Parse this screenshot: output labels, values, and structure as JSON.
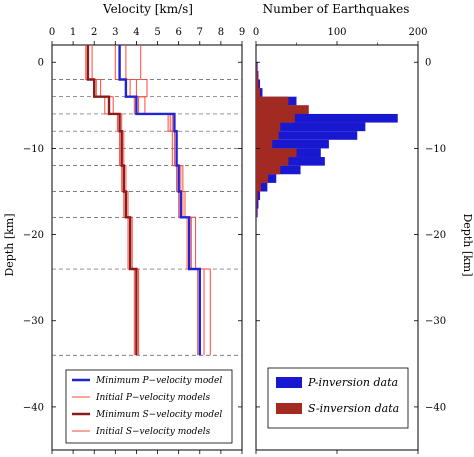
{
  "chart_data": [
    {
      "type": "line",
      "title": "Velocity [km/s]",
      "ylabel": "Depth [km]",
      "xlim": [
        0,
        9
      ],
      "ylim": [
        -45,
        2
      ],
      "x_ticks": [
        "0",
        "1",
        "2",
        "3",
        "4",
        "5",
        "6",
        "7",
        "8",
        "9"
      ],
      "y_ticks": [
        "0",
        "−10",
        "−20",
        "−30",
        "−40"
      ],
      "y_tick_values": [
        0,
        -10,
        -20,
        -30,
        -40
      ],
      "layer_boundaries": [
        -2,
        -4,
        -6,
        -8,
        -10,
        -12,
        -15,
        -18,
        -24,
        -34
      ],
      "series": [
        {
          "name": "Minimum P−velocity model",
          "color": "#1f25d6",
          "steps": [
            [
              3.2,
              2
            ],
            [
              3.2,
              -2
            ],
            [
              3.5,
              -2
            ],
            [
              3.5,
              -4
            ],
            [
              4.0,
              -4
            ],
            [
              4.0,
              -6
            ],
            [
              5.8,
              -6
            ],
            [
              5.8,
              -8
            ],
            [
              5.9,
              -8
            ],
            [
              5.9,
              -12
            ],
            [
              6.0,
              -12
            ],
            [
              6.0,
              -15
            ],
            [
              6.1,
              -15
            ],
            [
              6.1,
              -18
            ],
            [
              6.5,
              -18
            ],
            [
              6.5,
              -24
            ],
            [
              7.0,
              -24
            ],
            [
              7.0,
              -34
            ]
          ]
        },
        {
          "name": "Initial P−velocity models",
          "color": "#ff4a3a",
          "steps_sets": [
            [
              [
                3.5,
                2
              ],
              [
                3.5,
                -2
              ],
              [
                4.0,
                -2
              ],
              [
                4.0,
                -4
              ],
              [
                4.4,
                -4
              ],
              [
                4.4,
                -6
              ],
              [
                5.6,
                -6
              ],
              [
                5.6,
                -8
              ],
              [
                5.7,
                -8
              ],
              [
                5.7,
                -12
              ],
              [
                5.9,
                -12
              ],
              [
                5.9,
                -15
              ],
              [
                6.0,
                -15
              ],
              [
                6.0,
                -18
              ],
              [
                6.6,
                -18
              ],
              [
                6.6,
                -24
              ],
              [
                7.2,
                -24
              ],
              [
                7.2,
                -34
              ]
            ],
            [
              [
                4.2,
                2
              ],
              [
                4.2,
                -2
              ],
              [
                4.5,
                -2
              ],
              [
                4.5,
                -4
              ],
              [
                4.1,
                -4
              ],
              [
                4.1,
                -6
              ],
              [
                5.7,
                -6
              ],
              [
                5.7,
                -8
              ],
              [
                5.9,
                -8
              ],
              [
                5.9,
                -12
              ],
              [
                6.2,
                -12
              ],
              [
                6.2,
                -15
              ],
              [
                6.3,
                -15
              ],
              [
                6.3,
                -18
              ],
              [
                6.8,
                -18
              ],
              [
                6.8,
                -24
              ],
              [
                7.5,
                -24
              ],
              [
                7.5,
                -34
              ]
            ],
            [
              [
                3.0,
                2
              ],
              [
                3.0,
                -2
              ],
              [
                3.7,
                -2
              ],
              [
                3.7,
                -4
              ],
              [
                3.9,
                -4
              ],
              [
                3.9,
                -6
              ],
              [
                5.5,
                -6
              ],
              [
                5.5,
                -8
              ],
              [
                5.8,
                -8
              ],
              [
                5.8,
                -12
              ],
              [
                6.1,
                -12
              ],
              [
                6.1,
                -15
              ],
              [
                6.2,
                -15
              ],
              [
                6.2,
                -18
              ],
              [
                6.4,
                -18
              ],
              [
                6.4,
                -24
              ],
              [
                6.9,
                -24
              ],
              [
                6.9,
                -34
              ]
            ]
          ]
        },
        {
          "name": "Minimum S−velocity model",
          "color": "#8b1a1a",
          "steps": [
            [
              1.7,
              2
            ],
            [
              1.7,
              -2
            ],
            [
              2.0,
              -2
            ],
            [
              2.0,
              -4
            ],
            [
              2.7,
              -4
            ],
            [
              2.7,
              -6
            ],
            [
              3.2,
              -6
            ],
            [
              3.2,
              -8
            ],
            [
              3.3,
              -8
            ],
            [
              3.3,
              -12
            ],
            [
              3.4,
              -12
            ],
            [
              3.4,
              -15
            ],
            [
              3.5,
              -15
            ],
            [
              3.5,
              -18
            ],
            [
              3.7,
              -18
            ],
            [
              3.7,
              -24
            ],
            [
              4.0,
              -24
            ],
            [
              4.0,
              -34
            ]
          ]
        },
        {
          "name": "Initial S−velocity models",
          "color": "#ff4a3a",
          "steps_sets": [
            [
              [
                1.9,
                2
              ],
              [
                1.9,
                -2
              ],
              [
                2.3,
                -2
              ],
              [
                2.3,
                -4
              ],
              [
                2.5,
                -4
              ],
              [
                2.5,
                -6
              ],
              [
                3.1,
                -6
              ],
              [
                3.1,
                -8
              ],
              [
                3.2,
                -8
              ],
              [
                3.2,
                -12
              ],
              [
                3.3,
                -12
              ],
              [
                3.3,
                -15
              ],
              [
                3.4,
                -15
              ],
              [
                3.4,
                -18
              ],
              [
                3.6,
                -18
              ],
              [
                3.6,
                -24
              ],
              [
                3.9,
                -24
              ],
              [
                3.9,
                -34
              ]
            ],
            [
              [
                1.6,
                2
              ],
              [
                1.6,
                -2
              ],
              [
                2.1,
                -2
              ],
              [
                2.1,
                -4
              ],
              [
                2.9,
                -4
              ],
              [
                2.9,
                -6
              ],
              [
                3.3,
                -6
              ],
              [
                3.3,
                -8
              ],
              [
                3.4,
                -8
              ],
              [
                3.4,
                -12
              ],
              [
                3.5,
                -12
              ],
              [
                3.5,
                -15
              ],
              [
                3.6,
                -15
              ],
              [
                3.6,
                -18
              ],
              [
                3.8,
                -18
              ],
              [
                3.8,
                -24
              ],
              [
                4.1,
                -24
              ],
              [
                4.1,
                -34
              ]
            ]
          ]
        }
      ],
      "legend": [
        {
          "label": "Minimum P−velocity model",
          "color": "#1f25d6",
          "thick": true
        },
        {
          "label": "Initial P−velocity models",
          "color": "#ff4a3a",
          "thick": false
        },
        {
          "label": "Minimum S−velocity model",
          "color": "#8b1a1a",
          "thick": true
        },
        {
          "label": "Initial S−velocity models",
          "color": "#ff4a3a",
          "thick": false
        }
      ]
    },
    {
      "type": "bar",
      "orientation": "horizontal",
      "title": "Number of Earthquakes",
      "ylabel": "Depth [km]",
      "xlim": [
        0,
        200
      ],
      "ylim": [
        -45,
        2
      ],
      "x_ticks": [
        "0",
        "100",
        "200"
      ],
      "x_tick_values": [
        0,
        100,
        200
      ],
      "y_ticks": [
        "0",
        "−10",
        "−20",
        "−30",
        "−40"
      ],
      "y_tick_values": [
        0,
        -10,
        -20,
        -30,
        -40
      ],
      "bin_size_km": 1,
      "bins_top_depth": [
        0,
        -1,
        -2,
        -3,
        -4,
        -5,
        -6,
        -7,
        -8,
        -9,
        -10,
        -11,
        -12,
        -13,
        -14,
        -15,
        -16,
        -17
      ],
      "series": [
        {
          "name": "P-inversion data",
          "color": "#1818d0",
          "values": [
            2,
            3,
            5,
            8,
            50,
            65,
            175,
            135,
            125,
            90,
            80,
            85,
            55,
            25,
            14,
            5,
            3,
            2
          ]
        },
        {
          "name": "S-inversion data",
          "color": "#a32a20",
          "values": [
            1,
            2,
            3,
            5,
            40,
            65,
            48,
            30,
            28,
            20,
            50,
            40,
            30,
            15,
            6,
            2,
            1,
            1
          ]
        }
      ],
      "legend": [
        {
          "label": "P-inversion data",
          "color": "#1818d0"
        },
        {
          "label": "S-inversion data",
          "color": "#a32a20"
        }
      ]
    }
  ]
}
